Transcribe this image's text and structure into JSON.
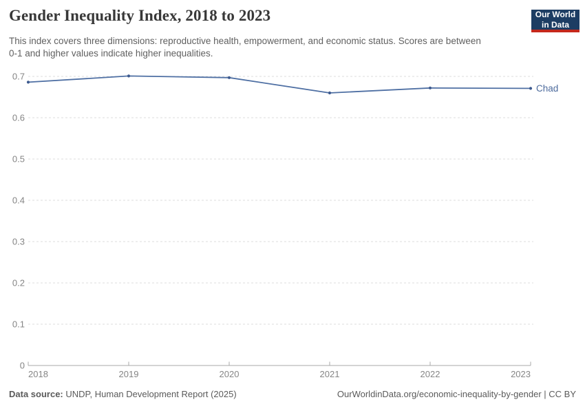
{
  "header": {
    "title": "Gender Inequality Index, 2018 to 2023",
    "subtitle": "This index covers three dimensions: reproductive health, empowerment, and economic status. Scores are between 0-1 and higher values indicate higher inequalities.",
    "logo": {
      "line1": "Our World",
      "line2": "in Data",
      "bg_color": "#1d3d63",
      "stripe_color": "#c5281c",
      "text_color": "#ffffff"
    }
  },
  "chart_data": {
    "type": "line",
    "title": "Gender Inequality Index, 2018 to 2023",
    "x": [
      2018,
      2019,
      2020,
      2021,
      2022,
      2023
    ],
    "series": [
      {
        "name": "Chad",
        "color": "#4e6fa3",
        "marker_color": "#3d5a8f",
        "label_color": "#4c6a9c",
        "values": [
          0.686,
          0.701,
          0.697,
          0.66,
          0.672,
          0.671
        ]
      }
    ],
    "xlabel": "",
    "ylabel": "",
    "ylim": [
      0,
      0.7
    ],
    "yticks": [
      0,
      0.1,
      0.2,
      0.3,
      0.4,
      0.5,
      0.6,
      0.7
    ],
    "grid": "horizontal-dashed",
    "legend_position": "line-end-label"
  },
  "footer": {
    "datasource_label": "Data source:",
    "datasource_text": " UNDP, Human Development Report (2025)",
    "credit": "OurWorldinData.org/economic-inequality-by-gender | CC BY"
  },
  "colors": {
    "gridline": "#dedede",
    "axis": "#a8a8a8",
    "tick_label": "#858585",
    "title_text": "#383838",
    "subtitle_text": "#5f5f5f",
    "footer_text": "#5a5a5a",
    "logo_bg": "#1d3d63",
    "logo_stripe": "#c5281c"
  }
}
